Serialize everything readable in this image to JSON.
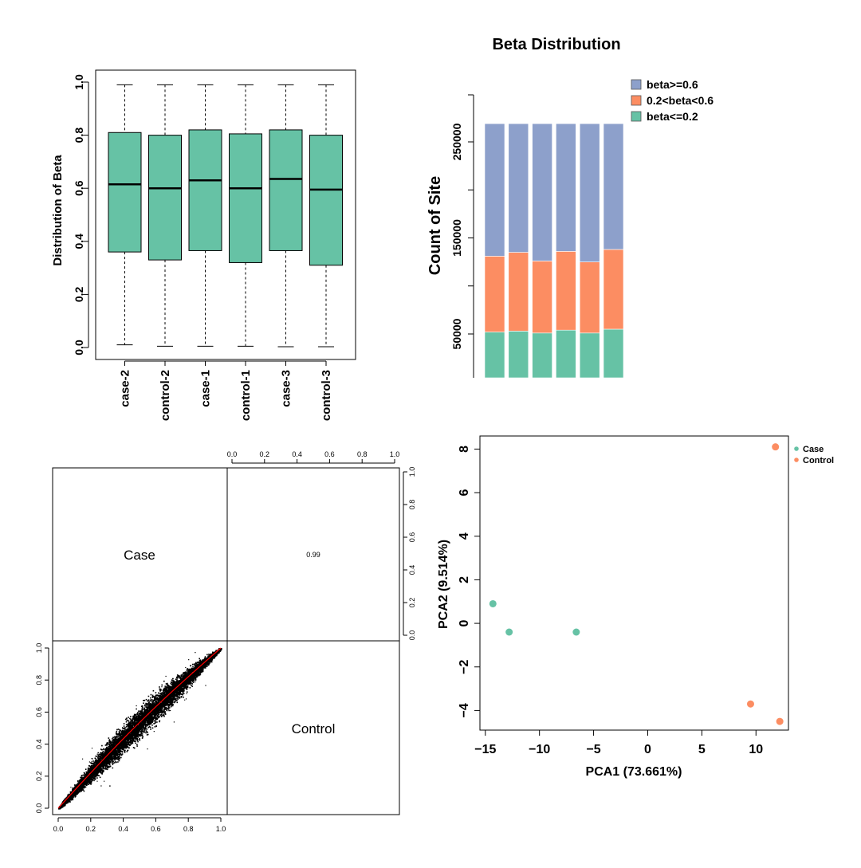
{
  "chart_data": [
    {
      "type": "box",
      "ylabel": "Distribution of Beta",
      "ylim": [
        0,
        1
      ],
      "y_ticks": [
        "0.0",
        "0.2",
        "0.4",
        "0.6",
        "0.8",
        "1.0"
      ],
      "categories": [
        "case-2",
        "control-2",
        "case-1",
        "control-1",
        "case-3",
        "control-3"
      ],
      "boxes": [
        {
          "min": 0.01,
          "q1": 0.36,
          "median": 0.615,
          "q3": 0.81,
          "max": 0.99
        },
        {
          "min": 0.005,
          "q1": 0.33,
          "median": 0.6,
          "q3": 0.8,
          "max": 0.99
        },
        {
          "min": 0.005,
          "q1": 0.365,
          "median": 0.63,
          "q3": 0.82,
          "max": 0.99
        },
        {
          "min": 0.005,
          "q1": 0.32,
          "median": 0.6,
          "q3": 0.805,
          "max": 0.99
        },
        {
          "min": 0.003,
          "q1": 0.365,
          "median": 0.635,
          "q3": 0.82,
          "max": 0.99
        },
        {
          "min": 0.003,
          "q1": 0.31,
          "median": 0.595,
          "q3": 0.8,
          "max": 0.99
        }
      ],
      "color": "#66c2a5"
    },
    {
      "type": "bar",
      "stacked": true,
      "title": "Beta Distribution",
      "ylabel": "Count of Site",
      "y_ticks": [
        50000,
        150000,
        250000
      ],
      "ylim": [
        5000,
        300000
      ],
      "legend_position": "top-right",
      "series": [
        {
          "name": "beta<=0.2",
          "color": "#66c2a5",
          "values": [
            52000,
            53000,
            51000,
            54000,
            51000,
            55000
          ]
        },
        {
          "name": "0.2<beta<0.6",
          "color": "#fc8d62",
          "values": [
            79000,
            82000,
            75000,
            82000,
            74000,
            83000
          ]
        },
        {
          "name": "beta>=0.6",
          "color": "#8da0cb",
          "values": [
            138000,
            134000,
            143000,
            133000,
            144000,
            131000
          ]
        }
      ]
    },
    {
      "type": "scatter",
      "subtype": "pairs",
      "labels": [
        "Case",
        "Control"
      ],
      "correlation": "0.99",
      "ticks": [
        "0.0",
        "0.2",
        "0.4",
        "0.6",
        "0.8",
        "1.0"
      ],
      "xlim": [
        0,
        1
      ],
      "ylim": [
        0,
        1
      ],
      "fit_color": "#ff0000"
    },
    {
      "type": "scatter",
      "xlabel": "PCA1 (73.661%)",
      "ylabel": "PCA2 (9.514%)",
      "xlim": [
        -15.5,
        13
      ],
      "ylim": [
        -4.9,
        8.6
      ],
      "x_ticks": [
        "−15",
        "−10",
        "−5",
        "0",
        "5",
        "10"
      ],
      "y_ticks": [
        "−4",
        "−2",
        "0",
        "2",
        "4",
        "6",
        "8"
      ],
      "legend_position": "top-right",
      "series": [
        {
          "name": "Case",
          "color": "#66c2a5",
          "points": [
            [
              -14.3,
              0.9
            ],
            [
              -12.8,
              -0.4
            ],
            [
              -6.6,
              -0.4
            ]
          ]
        },
        {
          "name": "Control",
          "color": "#fc8d62",
          "points": [
            [
              11.8,
              8.1
            ],
            [
              9.5,
              -3.7
            ],
            [
              12.2,
              -4.5
            ]
          ]
        }
      ]
    }
  ]
}
